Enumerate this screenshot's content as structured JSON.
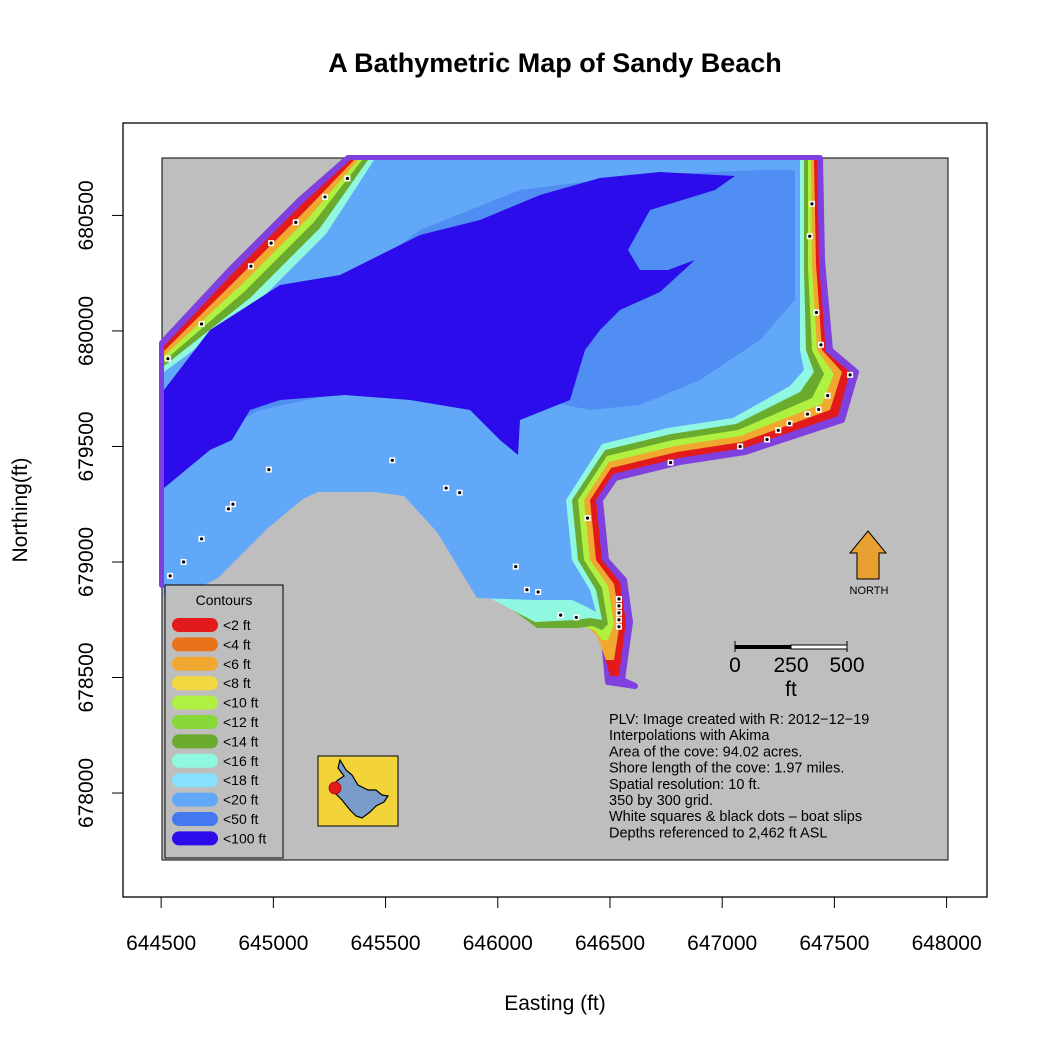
{
  "title": "A Bathymetric Map of  Sandy Beach",
  "chart_data": {
    "type": "map",
    "title": "A Bathymetric Map of  Sandy Beach",
    "xlabel": "Easting (ft)",
    "ylabel": "Northing(ft)",
    "xlim": [
      644330,
      648180
    ],
    "ylim": [
      677550,
      680900
    ],
    "x_ticks": [
      "644500",
      "645000",
      "645500",
      "646000",
      "646500",
      "647000",
      "647500",
      "648000"
    ],
    "y_ticks": [
      "678000",
      "678500",
      "679000",
      "679500",
      "680000",
      "680500"
    ],
    "x_tick_values": [
      644500,
      645000,
      645500,
      646000,
      646500,
      647000,
      647500,
      648000
    ],
    "y_tick_values": [
      678000,
      678500,
      679000,
      679500,
      680000,
      680500
    ],
    "grid": false,
    "background_color": "#bebebe",
    "shore_outline_color": "#8040e0",
    "legend": {
      "title": "Contours",
      "position": "bottom-left",
      "entries": [
        {
          "label": "<2 ft",
          "color": "#e31a1c"
        },
        {
          "label": "<4 ft",
          "color": "#e8731c"
        },
        {
          "label": "<6 ft",
          "color": "#f0a830"
        },
        {
          "label": "<8 ft",
          "color": "#f2d840"
        },
        {
          "label": "<10 ft",
          "color": "#b0f040"
        },
        {
          "label": "<12 ft",
          "color": "#88d838"
        },
        {
          "label": "<14 ft",
          "color": "#6aaa2e"
        },
        {
          "label": "<16 ft",
          "color": "#90f8e0"
        },
        {
          "label": "<18 ft",
          "color": "#88e0ff"
        },
        {
          "label": "<20 ft",
          "color": "#62a8f8"
        },
        {
          "label": "<50 ft",
          "color": "#4478f0"
        },
        {
          "label": "<100 ft",
          "color": "#2c0cea"
        }
      ]
    },
    "notes": [
      "PLV: Image created with R: 2012−12−19",
      "Interpolations with Akima",
      "Area of the cove: 94.02 acres.",
      "Shore length of the cove: 1.97 miles.",
      "Spatial resolution: 10 ft.",
      "350 by 300 grid.",
      "White squares & black dots – boat slips",
      "Depths referenced to 2,462 ft ASL"
    ],
    "north_arrow": {
      "label": "NORTH",
      "color": "#e8a030"
    },
    "scale_bar": {
      "ticks": [
        "0",
        "250",
        "500"
      ],
      "unit": "ft",
      "values": [
        0,
        250,
        500
      ]
    },
    "boat_slips": [
      [
        644530,
        679880
      ],
      [
        644680,
        680030
      ],
      [
        644900,
        680280
      ],
      [
        644990,
        680380
      ],
      [
        645100,
        680470
      ],
      [
        645230,
        680580
      ],
      [
        645330,
        680660
      ],
      [
        647400,
        680550
      ],
      [
        647390,
        680410
      ],
      [
        647420,
        680080
      ],
      [
        647440,
        679940
      ],
      [
        647570,
        679810
      ],
      [
        647470,
        679720
      ],
      [
        647430,
        679660
      ],
      [
        647380,
        679640
      ],
      [
        647300,
        679600
      ],
      [
        647250,
        679570
      ],
      [
        647200,
        679530
      ],
      [
        647080,
        679500
      ],
      [
        646770,
        679430
      ],
      [
        646400,
        679190
      ],
      [
        646540,
        678840
      ],
      [
        646540,
        678810
      ],
      [
        646540,
        678780
      ],
      [
        646540,
        678750
      ],
      [
        646540,
        678720
      ],
      [
        646350,
        678760
      ],
      [
        646280,
        678770
      ],
      [
        646180,
        678870
      ],
      [
        646130,
        678880
      ],
      [
        646080,
        678980
      ],
      [
        645830,
        679300
      ],
      [
        645770,
        679320
      ],
      [
        645530,
        679440
      ],
      [
        644980,
        679400
      ],
      [
        644820,
        679250
      ],
      [
        644800,
        679230
      ],
      [
        644680,
        679100
      ],
      [
        644600,
        679000
      ],
      [
        644540,
        678940
      ]
    ]
  }
}
